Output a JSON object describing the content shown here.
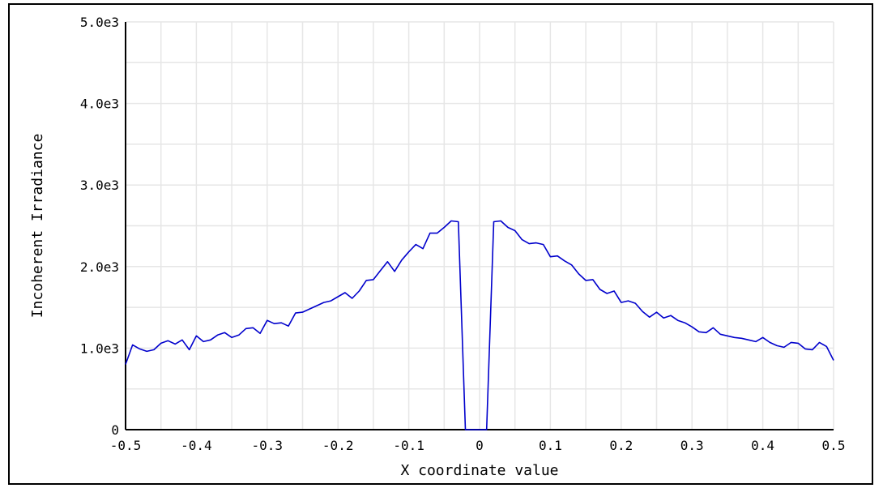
{
  "chart_data": {
    "type": "line",
    "title": "",
    "xlabel": "X coordinate value",
    "ylabel": "Incoherent Irradiance",
    "xlim": [
      -0.5,
      0.5
    ],
    "ylim": [
      0,
      5000
    ],
    "x_ticks": [
      -0.5,
      -0.4,
      -0.3,
      -0.2,
      -0.1,
      0,
      0.1,
      0.2,
      0.3,
      0.4,
      0.5
    ],
    "x_tick_labels": [
      "-0.5",
      "-0.4",
      "-0.3",
      "-0.2",
      "-0.1",
      "0",
      "0.1",
      "0.2",
      "0.3",
      "0.4",
      "0.5"
    ],
    "y_ticks": [
      0,
      1000,
      2000,
      3000,
      4000,
      5000
    ],
    "y_tick_labels": [
      "0",
      "1.0e3",
      "2.0e3",
      "3.0e3",
      "4.0e3",
      "5.0e3"
    ],
    "grid": true,
    "colors": {
      "line": "#0000cc",
      "grid": "#e6e6e6",
      "axis": "#000000"
    },
    "series": [
      {
        "x": [
          -0.5,
          -0.49,
          -0.48,
          -0.47,
          -0.46,
          -0.45,
          -0.44,
          -0.43,
          -0.42,
          -0.41,
          -0.4,
          -0.39,
          -0.38,
          -0.37,
          -0.36,
          -0.35,
          -0.34,
          -0.33,
          -0.32,
          -0.31,
          -0.3,
          -0.29,
          -0.28,
          -0.27,
          -0.26,
          -0.25,
          -0.24,
          -0.23,
          -0.22,
          -0.21,
          -0.2,
          -0.19,
          -0.18,
          -0.17,
          -0.16,
          -0.15,
          -0.14,
          -0.13,
          -0.12,
          -0.11,
          -0.1,
          -0.09,
          -0.08,
          -0.07,
          -0.06,
          -0.05,
          -0.04,
          -0.03,
          -0.02,
          -0.01,
          0,
          0.01,
          0.02,
          0.03,
          0.04,
          0.05,
          0.06,
          0.07,
          0.08,
          0.09,
          0.1,
          0.11,
          0.12,
          0.13,
          0.14,
          0.15,
          0.16,
          0.17,
          0.18,
          0.19,
          0.2,
          0.21,
          0.22,
          0.23,
          0.24,
          0.25,
          0.26,
          0.27,
          0.28,
          0.29,
          0.3,
          0.31,
          0.32,
          0.33,
          0.34,
          0.35,
          0.36,
          0.37,
          0.38,
          0.39,
          0.4,
          0.41,
          0.42,
          0.43,
          0.44,
          0.45,
          0.46,
          0.47,
          0.48,
          0.49,
          0.5
        ],
        "y": [
          800,
          1040,
          990,
          960,
          980,
          1060,
          1090,
          1050,
          1100,
          980,
          1150,
          1080,
          1100,
          1160,
          1190,
          1130,
          1160,
          1240,
          1250,
          1180,
          1340,
          1300,
          1310,
          1270,
          1430,
          1440,
          1480,
          1520,
          1560,
          1580,
          1630,
          1680,
          1610,
          1700,
          1830,
          1840,
          1950,
          2060,
          1940,
          2080,
          2180,
          2270,
          2220,
          2410,
          2410,
          2480,
          2560,
          2550,
          0,
          0,
          0,
          0,
          2550,
          2560,
          2480,
          2440,
          2330,
          2280,
          2290,
          2270,
          2120,
          2130,
          2070,
          2020,
          1910,
          1830,
          1840,
          1720,
          1670,
          1700,
          1560,
          1580,
          1550,
          1450,
          1380,
          1440,
          1370,
          1400,
          1340,
          1310,
          1260,
          1200,
          1190,
          1250,
          1170,
          1150,
          1130,
          1120,
          1100,
          1080,
          1130,
          1070,
          1030,
          1010,
          1070,
          1060,
          990,
          980,
          1070,
          1020,
          850
        ]
      }
    ]
  }
}
